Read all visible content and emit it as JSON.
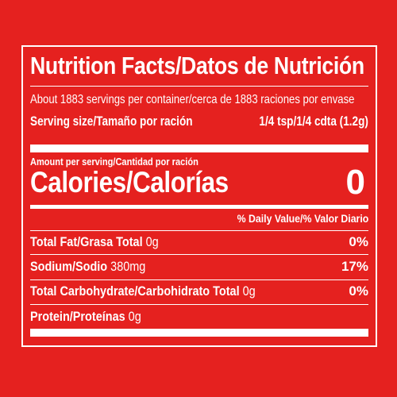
{
  "label": {
    "title": "Nutrition Facts/Datos de Nutrición",
    "servings_per_container": "About 1883 servings per container/cerca de 1883 raciones por envase",
    "serving_size_label": "Serving size/Tamaño por ración",
    "serving_size_value": "1/4 tsp/1/4 cdta (1.2g)",
    "amount_per_serving": "Amount per serving/Cantidad por ración",
    "calories_label": "Calories/Calorías",
    "calories_value": "0",
    "daily_value_header": "% Daily Value/% Valor Diario",
    "nutrients": [
      {
        "name": "Total Fat/Grasa Total",
        "amount": "0g",
        "dv": "0%"
      },
      {
        "name": "Sodium/Sodio",
        "amount": "380mg",
        "dv": "17%"
      },
      {
        "name": "Total Carbohydrate/Carbohidrato Total",
        "amount": "0g",
        "dv": "0%"
      },
      {
        "name": "Protein/Proteínas",
        "amount": "0g",
        "dv": ""
      }
    ]
  },
  "colors": {
    "background": "#e5211f",
    "foreground": "#ffffff"
  }
}
